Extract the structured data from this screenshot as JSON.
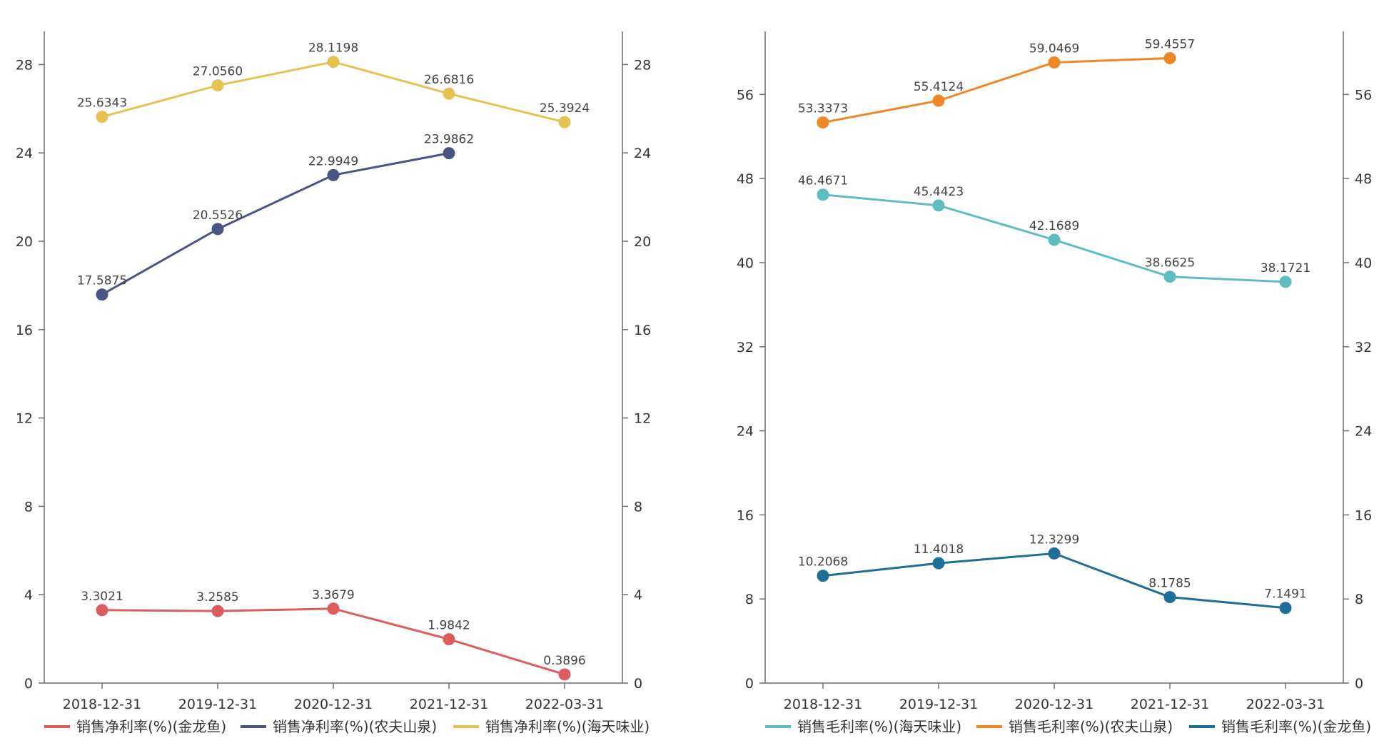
{
  "chart_data": [
    {
      "type": "line",
      "title": "",
      "categories": [
        "2018-12-31",
        "2019-12-31",
        "2020-12-31",
        "2021-12-31",
        "2022-03-31"
      ],
      "ylim": [
        0,
        29.5
      ],
      "yticks": [
        "0",
        "4",
        "8",
        "12",
        "16",
        "20",
        "24",
        "28"
      ],
      "series": [
        {
          "name": "销售净利率(%)(金龙鱼)",
          "color": "#dd5c5c",
          "values": [
            3.3021,
            3.2585,
            3.3679,
            1.9842,
            0.3896
          ],
          "labels": [
            "3.3021",
            "3.2585",
            "3.3679",
            "1.9842",
            "0.3896"
          ]
        },
        {
          "name": "销售净利率(%)(农夫山泉)",
          "color": "#4b5585",
          "values": [
            17.5875,
            20.5526,
            22.9949,
            23.9862,
            null
          ],
          "labels": [
            "17.5875",
            "20.5526",
            "22.9949",
            "23.9862",
            ""
          ]
        },
        {
          "name": "销售净利率(%)(海天味业)",
          "color": "#e5c254",
          "values": [
            25.6343,
            27.056,
            28.1198,
            26.6816,
            25.3924
          ],
          "labels": [
            "25.6343",
            "27.0560",
            "28.1198",
            "26.6816",
            "25.3924"
          ]
        }
      ]
    },
    {
      "type": "line",
      "title": "",
      "categories": [
        "2018-12-31",
        "2019-12-31",
        "2020-12-31",
        "2021-12-31",
        "2022-03-31"
      ],
      "ylim": [
        0,
        62
      ],
      "yticks": [
        "0",
        "8",
        "16",
        "24",
        "32",
        "40",
        "48",
        "56"
      ],
      "series": [
        {
          "name": "销售毛利率(%)(海天味业)",
          "color": "#5fbdbf",
          "values": [
            46.4671,
            45.4423,
            42.1689,
            38.6625,
            38.1721
          ],
          "labels": [
            "46.4671",
            "45.4423",
            "42.1689",
            "38.6625",
            "38.1721"
          ]
        },
        {
          "name": "销售毛利率(%)(农夫山泉)",
          "color": "#ef8726",
          "values": [
            53.3373,
            55.4124,
            59.0469,
            59.4557,
            null
          ],
          "labels": [
            "53.3373",
            "55.4124",
            "59.0469",
            "59.4557",
            ""
          ]
        },
        {
          "name": "销售毛利率(%)(金龙鱼)",
          "color": "#1f6e96",
          "values": [
            10.2068,
            11.4018,
            12.3299,
            8.1785,
            7.1491
          ],
          "labels": [
            "10.2068",
            "11.4018",
            "12.3299",
            "8.1785",
            "7.1491"
          ]
        }
      ]
    }
  ]
}
